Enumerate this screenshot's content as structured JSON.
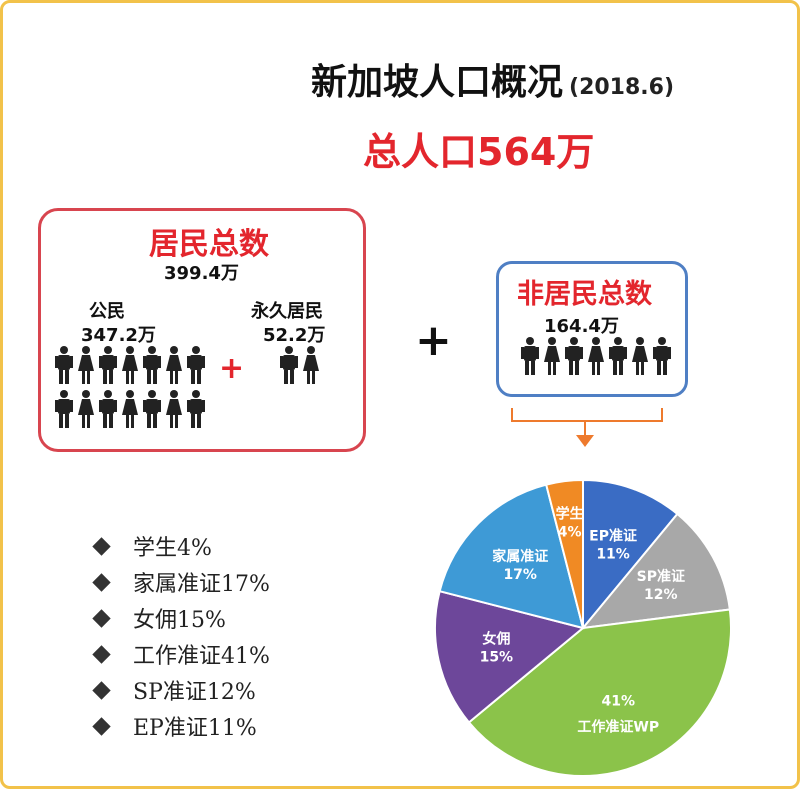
{
  "header": {
    "title": "新加坡人口概况",
    "year": "(2018.6)",
    "total_label": "总人口",
    "total_value": "564万"
  },
  "residents": {
    "title": "居民总数",
    "total": "399.4万",
    "citizens_label": "公民",
    "citizens_value": "347.2万",
    "pr_label": "永久居民",
    "pr_value": "52.2万",
    "plus": "+"
  },
  "operator": "+",
  "non_residents": {
    "title": "非居民总数",
    "total": "164.4万"
  },
  "legend": [
    "学生4%",
    "家属准证17%",
    "女佣15%",
    "工作准证41%",
    "SP准证12%",
    "EP准证11%"
  ],
  "chart_data": {
    "type": "pie",
    "slices": [
      {
        "name": "EP准证",
        "label": "11%",
        "value": 11,
        "color": "#3a6cc4"
      },
      {
        "name": "SP准证",
        "label": "12%",
        "value": 12,
        "color": "#a8a8a8"
      },
      {
        "name": "工作准证WP",
        "label": "41%",
        "value": 41,
        "color": "#8bc34a"
      },
      {
        "name": "女佣",
        "label": "15%",
        "value": 15,
        "color": "#6d479a"
      },
      {
        "name": "家属准证",
        "label": "17%",
        "value": 17,
        "color": "#3e9ad6"
      },
      {
        "name": "学生",
        "label": "4%",
        "value": 4,
        "color": "#f08a24"
      }
    ]
  }
}
